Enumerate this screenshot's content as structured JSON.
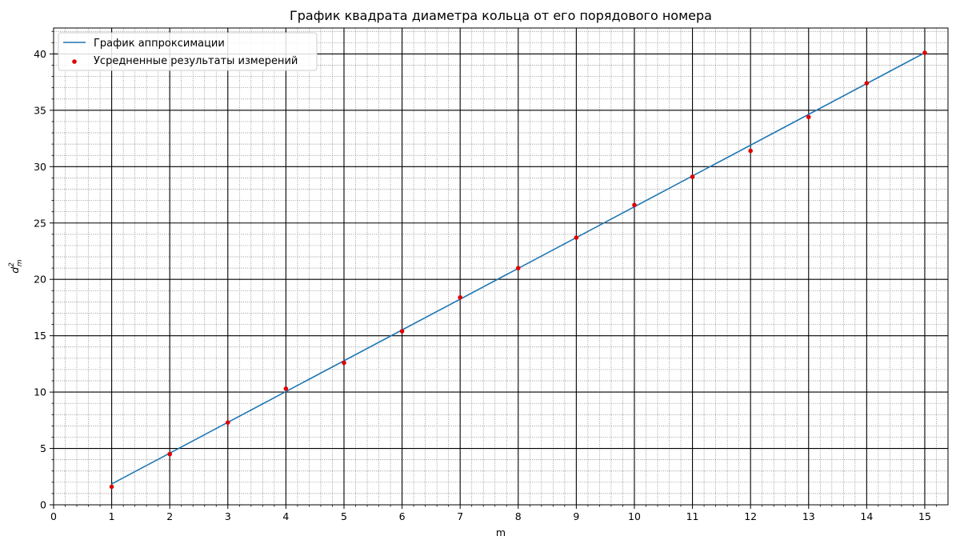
{
  "chart_data": {
    "type": "scatter",
    "title": "График квадрата диаметра кольца от его порядового номера",
    "xlabel": "m",
    "ylabel": {
      "base": "d",
      "sup": "2",
      "sub": "m"
    },
    "xlabel_color": "#0000ff",
    "ylabel_color": "#ff0000",
    "xlim": [
      0,
      15.4
    ],
    "ylim": [
      0,
      42.3
    ],
    "x_ticks": [
      0,
      1,
      2,
      3,
      4,
      5,
      6,
      7,
      8,
      9,
      10,
      11,
      12,
      13,
      14,
      15
    ],
    "y_ticks": [
      0,
      5,
      10,
      15,
      20,
      25,
      30,
      35,
      40
    ],
    "grid": {
      "major": true,
      "minor": true
    },
    "legend_position": "upper-left",
    "series": [
      {
        "name": "График аппроксимации",
        "kind": "line",
        "color": "#1f77b4",
        "x": [
          1,
          15
        ],
        "y": [
          1.85,
          40.1
        ]
      },
      {
        "name": "Усредненные результаты измерений",
        "kind": "scatter",
        "color": "#e00000",
        "x": [
          1,
          2,
          3,
          4,
          5,
          6,
          7,
          8,
          9,
          10,
          11,
          12,
          13,
          14,
          15
        ],
        "y": [
          1.6,
          4.5,
          7.3,
          10.3,
          12.6,
          15.4,
          18.4,
          21.0,
          23.7,
          26.6,
          29.1,
          31.4,
          34.4,
          37.4,
          40.1
        ]
      }
    ]
  }
}
